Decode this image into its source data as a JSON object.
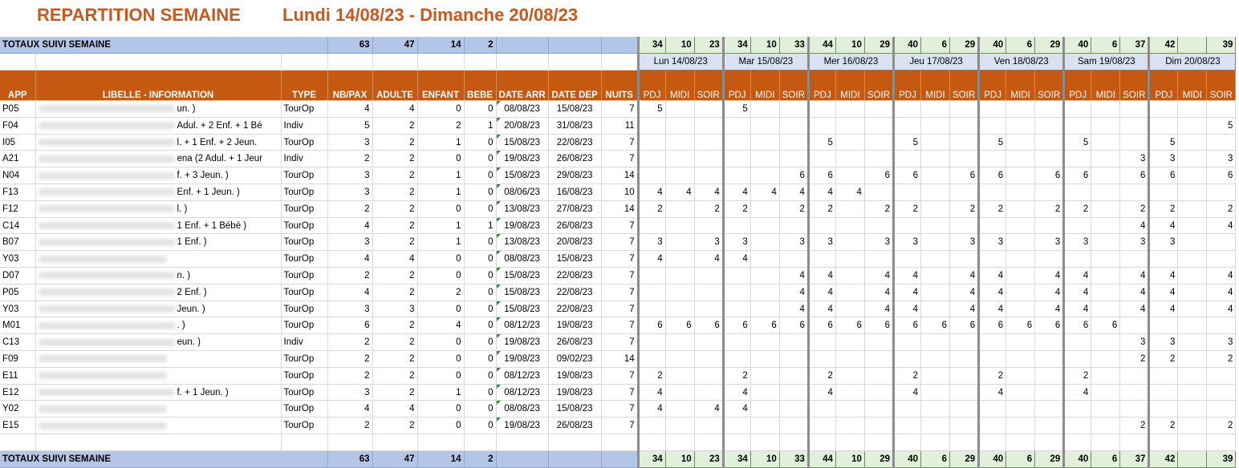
{
  "title": "REPARTITION SEMAINE",
  "dates": "Lundi 14/08/23 - Dimanche 20/08/23",
  "totals": {
    "label": "TOTAUX SUIVI SEMAINE",
    "nbpax": "63",
    "adulte": "47",
    "enfant": "14",
    "bebe": "2",
    "meals": [
      "34",
      "10",
      "23",
      "34",
      "10",
      "33",
      "44",
      "10",
      "29",
      "40",
      "6",
      "29",
      "40",
      "6",
      "29",
      "40",
      "6",
      "37",
      "42",
      "",
      "39"
    ]
  },
  "days": [
    "Lun 14/08/23",
    "Mar 15/08/23",
    "Mer 16/08/23",
    "Jeu 17/08/23",
    "Ven 18/08/23",
    "Sam 19/08/23",
    "Dim 20/08/23"
  ],
  "headers": {
    "app": "APP",
    "libelle": "LIBELLE - INFORMATION",
    "type": "TYPE",
    "nbpax": "NB/PAX",
    "adulte": "ADULTE",
    "enfant": "ENFANT",
    "bebe": "BEBE",
    "date_arr": "DATE ARR",
    "date_dep": "DATE DEP",
    "nuits": "NUITS",
    "meals": [
      "PDJ",
      "MIDI",
      "SOIR"
    ]
  },
  "rows": [
    {
      "app": "P05",
      "lib": "un. )",
      "type": "TourOp",
      "nb": "4",
      "ad": "4",
      "en": "0",
      "be": "0",
      "arr": "08/08/23",
      "dep": "15/08/23",
      "nuits": "7",
      "meals": [
        "5",
        "",
        "",
        "5",
        "",
        "",
        "",
        "",
        "",
        "",
        "",
        "",
        "",
        "",
        "",
        "",
        "",
        "",
        "",
        "",
        ""
      ]
    },
    {
      "app": "F04",
      "lib": "Adul. + 2 Enf. + 1 Bé",
      "type": "Indiv",
      "nb": "5",
      "ad": "2",
      "en": "2",
      "be": "1",
      "arr": "20/08/23",
      "dep": "31/08/23",
      "nuits": "11",
      "meals": [
        "",
        "",
        "",
        "",
        "",
        "",
        "",
        "",
        "",
        "",
        "",
        "",
        "",
        "",
        "",
        "",
        "",
        "",
        "",
        "",
        "5"
      ]
    },
    {
      "app": "I05",
      "lib": "l. + 1 Enf. + 2 Jeun.",
      "type": "TourOp",
      "nb": "3",
      "ad": "2",
      "en": "1",
      "be": "0",
      "arr": "15/08/23",
      "dep": "22/08/23",
      "nuits": "7",
      "meals": [
        "",
        "",
        "",
        "",
        "",
        "",
        "5",
        "",
        "",
        "5",
        "",
        "",
        "5",
        "",
        "",
        "5",
        "",
        "",
        "5",
        "",
        ""
      ]
    },
    {
      "app": "A21",
      "lib": "ena (2 Adul. + 1 Jeur",
      "type": "Indiv",
      "nb": "2",
      "ad": "2",
      "en": "0",
      "be": "0",
      "arr": "19/08/23",
      "dep": "26/08/23",
      "nuits": "7",
      "meals": [
        "",
        "",
        "",
        "",
        "",
        "",
        "",
        "",
        "",
        "",
        "",
        "",
        "",
        "",
        "",
        "",
        "",
        "3",
        "3",
        "",
        "3"
      ]
    },
    {
      "app": "N04",
      "lib": "f. + 3 Jeun. )",
      "type": "TourOp",
      "nb": "3",
      "ad": "2",
      "en": "1",
      "be": "0",
      "arr": "15/08/23",
      "dep": "29/08/23",
      "nuits": "14",
      "meals": [
        "",
        "",
        "",
        "",
        "",
        "6",
        "6",
        "",
        "6",
        "6",
        "",
        "6",
        "6",
        "",
        "6",
        "6",
        "",
        "6",
        "6",
        "",
        "6"
      ]
    },
    {
      "app": "F13",
      "lib": "Enf. + 1 Jeun. )",
      "type": "TourOp",
      "nb": "3",
      "ad": "2",
      "en": "1",
      "be": "0",
      "arr": "08/06/23",
      "dep": "16/08/23",
      "nuits": "10",
      "meals": [
        "4",
        "4",
        "4",
        "4",
        "4",
        "4",
        "4",
        "4",
        "",
        "",
        "",
        "",
        "",
        "",
        "",
        "",
        "",
        "",
        "",
        "",
        ""
      ]
    },
    {
      "app": "F12",
      "lib": "l. )",
      "type": "TourOp",
      "nb": "2",
      "ad": "2",
      "en": "0",
      "be": "0",
      "arr": "13/08/23",
      "dep": "27/08/23",
      "nuits": "14",
      "meals": [
        "2",
        "",
        "2",
        "2",
        "",
        "2",
        "2",
        "",
        "2",
        "2",
        "",
        "2",
        "2",
        "",
        "2",
        "2",
        "",
        "2",
        "2",
        "",
        "2"
      ]
    },
    {
      "app": "C14",
      "lib": "1 Enf. + 1 Bébé )",
      "type": "TourOp",
      "nb": "4",
      "ad": "2",
      "en": "1",
      "be": "1",
      "arr": "19/08/23",
      "dep": "26/08/23",
      "nuits": "7",
      "meals": [
        "",
        "",
        "",
        "",
        "",
        "",
        "",
        "",
        "",
        "",
        "",
        "",
        "",
        "",
        "",
        "",
        "",
        "4",
        "4",
        "",
        "4"
      ]
    },
    {
      "app": "B07",
      "lib": "1 Enf. )",
      "type": "TourOp",
      "nb": "3",
      "ad": "2",
      "en": "1",
      "be": "0",
      "arr": "13/08/23",
      "dep": "20/08/23",
      "nuits": "7",
      "meals": [
        "3",
        "",
        "3",
        "3",
        "",
        "3",
        "3",
        "",
        "3",
        "3",
        "",
        "3",
        "3",
        "",
        "3",
        "3",
        "",
        "3",
        "3",
        "",
        ""
      ]
    },
    {
      "app": "Y03",
      "lib": "",
      "type": "TourOp",
      "nb": "4",
      "ad": "4",
      "en": "0",
      "be": "0",
      "arr": "08/08/23",
      "dep": "15/08/23",
      "nuits": "7",
      "meals": [
        "4",
        "",
        "4",
        "4",
        "",
        "",
        "",
        "",
        "",
        "",
        "",
        "",
        "",
        "",
        "",
        "",
        "",
        "",
        "",
        "",
        ""
      ]
    },
    {
      "app": "D07",
      "lib": "n. )",
      "type": "TourOp",
      "nb": "2",
      "ad": "2",
      "en": "0",
      "be": "0",
      "arr": "15/08/23",
      "dep": "22/08/23",
      "nuits": "7",
      "meals": [
        "",
        "",
        "",
        "",
        "",
        "4",
        "4",
        "",
        "4",
        "4",
        "",
        "4",
        "4",
        "",
        "4",
        "4",
        "",
        "4",
        "4",
        "",
        "4"
      ]
    },
    {
      "app": "P05",
      "lib": "2 Enf. )",
      "type": "TourOp",
      "nb": "4",
      "ad": "2",
      "en": "2",
      "be": "0",
      "arr": "15/08/23",
      "dep": "22/08/23",
      "nuits": "7",
      "meals": [
        "",
        "",
        "",
        "",
        "",
        "4",
        "4",
        "",
        "4",
        "4",
        "",
        "4",
        "4",
        "",
        "4",
        "4",
        "",
        "4",
        "4",
        "",
        "4"
      ]
    },
    {
      "app": "Y03",
      "lib": "Jeun. )",
      "type": "TourOp",
      "nb": "3",
      "ad": "3",
      "en": "0",
      "be": "0",
      "arr": "15/08/23",
      "dep": "22/08/23",
      "nuits": "7",
      "meals": [
        "",
        "",
        "",
        "",
        "",
        "4",
        "4",
        "",
        "4",
        "4",
        "",
        "4",
        "4",
        "",
        "4",
        "4",
        "",
        "4",
        "4",
        "",
        "4"
      ]
    },
    {
      "app": "M01",
      "lib": ". )",
      "type": "TourOp",
      "nb": "6",
      "ad": "2",
      "en": "4",
      "be": "0",
      "arr": "08/12/23",
      "dep": "19/08/23",
      "nuits": "7",
      "meals": [
        "6",
        "6",
        "6",
        "6",
        "6",
        "6",
        "6",
        "6",
        "6",
        "6",
        "6",
        "6",
        "6",
        "6",
        "6",
        "6",
        "6",
        "",
        "",
        "",
        ""
      ]
    },
    {
      "app": "C13",
      "lib": "eun. )",
      "type": "Indiv",
      "nb": "2",
      "ad": "2",
      "en": "0",
      "be": "0",
      "arr": "19/08/23",
      "dep": "26/08/23",
      "nuits": "7",
      "meals": [
        "",
        "",
        "",
        "",
        "",
        "",
        "",
        "",
        "",
        "",
        "",
        "",
        "",
        "",
        "",
        "",
        "",
        "3",
        "3",
        "",
        "3"
      ]
    },
    {
      "app": "F09",
      "lib": "",
      "type": "TourOp",
      "nb": "2",
      "ad": "2",
      "en": "0",
      "be": "0",
      "arr": "19/08/23",
      "dep": "09/02/23",
      "nuits": "14",
      "meals": [
        "",
        "",
        "",
        "",
        "",
        "",
        "",
        "",
        "",
        "",
        "",
        "",
        "",
        "",
        "",
        "",
        "",
        "2",
        "2",
        "",
        "2"
      ]
    },
    {
      "app": "E11",
      "lib": "",
      "type": "TourOp",
      "nb": "2",
      "ad": "2",
      "en": "0",
      "be": "0",
      "arr": "08/12/23",
      "dep": "19/08/23",
      "nuits": "7",
      "meals": [
        "2",
        "",
        "",
        "2",
        "",
        "",
        "2",
        "",
        "",
        "2",
        "",
        "",
        "2",
        "",
        "",
        "2",
        "",
        "",
        "",
        "",
        ""
      ]
    },
    {
      "app": "E12",
      "lib": "f. + 1 Jeun. )",
      "type": "TourOp",
      "nb": "3",
      "ad": "2",
      "en": "1",
      "be": "0",
      "arr": "08/12/23",
      "dep": "19/08/23",
      "nuits": "7",
      "meals": [
        "4",
        "",
        "",
        "4",
        "",
        "",
        "4",
        "",
        "",
        "4",
        "",
        "",
        "4",
        "",
        "",
        "4",
        "",
        "",
        "",
        "",
        ""
      ]
    },
    {
      "app": "Y02",
      "lib": "",
      "type": "TourOp",
      "nb": "4",
      "ad": "4",
      "en": "0",
      "be": "0",
      "arr": "08/08/23",
      "dep": "15/08/23",
      "nuits": "7",
      "meals": [
        "4",
        "",
        "4",
        "4",
        "",
        "",
        "",
        "",
        "",
        "",
        "",
        "",
        "",
        "",
        "",
        "",
        "",
        "",
        "",
        "",
        ""
      ]
    },
    {
      "app": "E15",
      "lib": "",
      "type": "TourOp",
      "nb": "2",
      "ad": "2",
      "en": "0",
      "be": "0",
      "arr": "19/08/23",
      "dep": "26/08/23",
      "nuits": "7",
      "meals": [
        "",
        "",
        "",
        "",
        "",
        "",
        "",
        "",
        "",
        "",
        "",
        "",
        "",
        "",
        "",
        "",
        "",
        "2",
        "2",
        "",
        "2"
      ]
    }
  ]
}
